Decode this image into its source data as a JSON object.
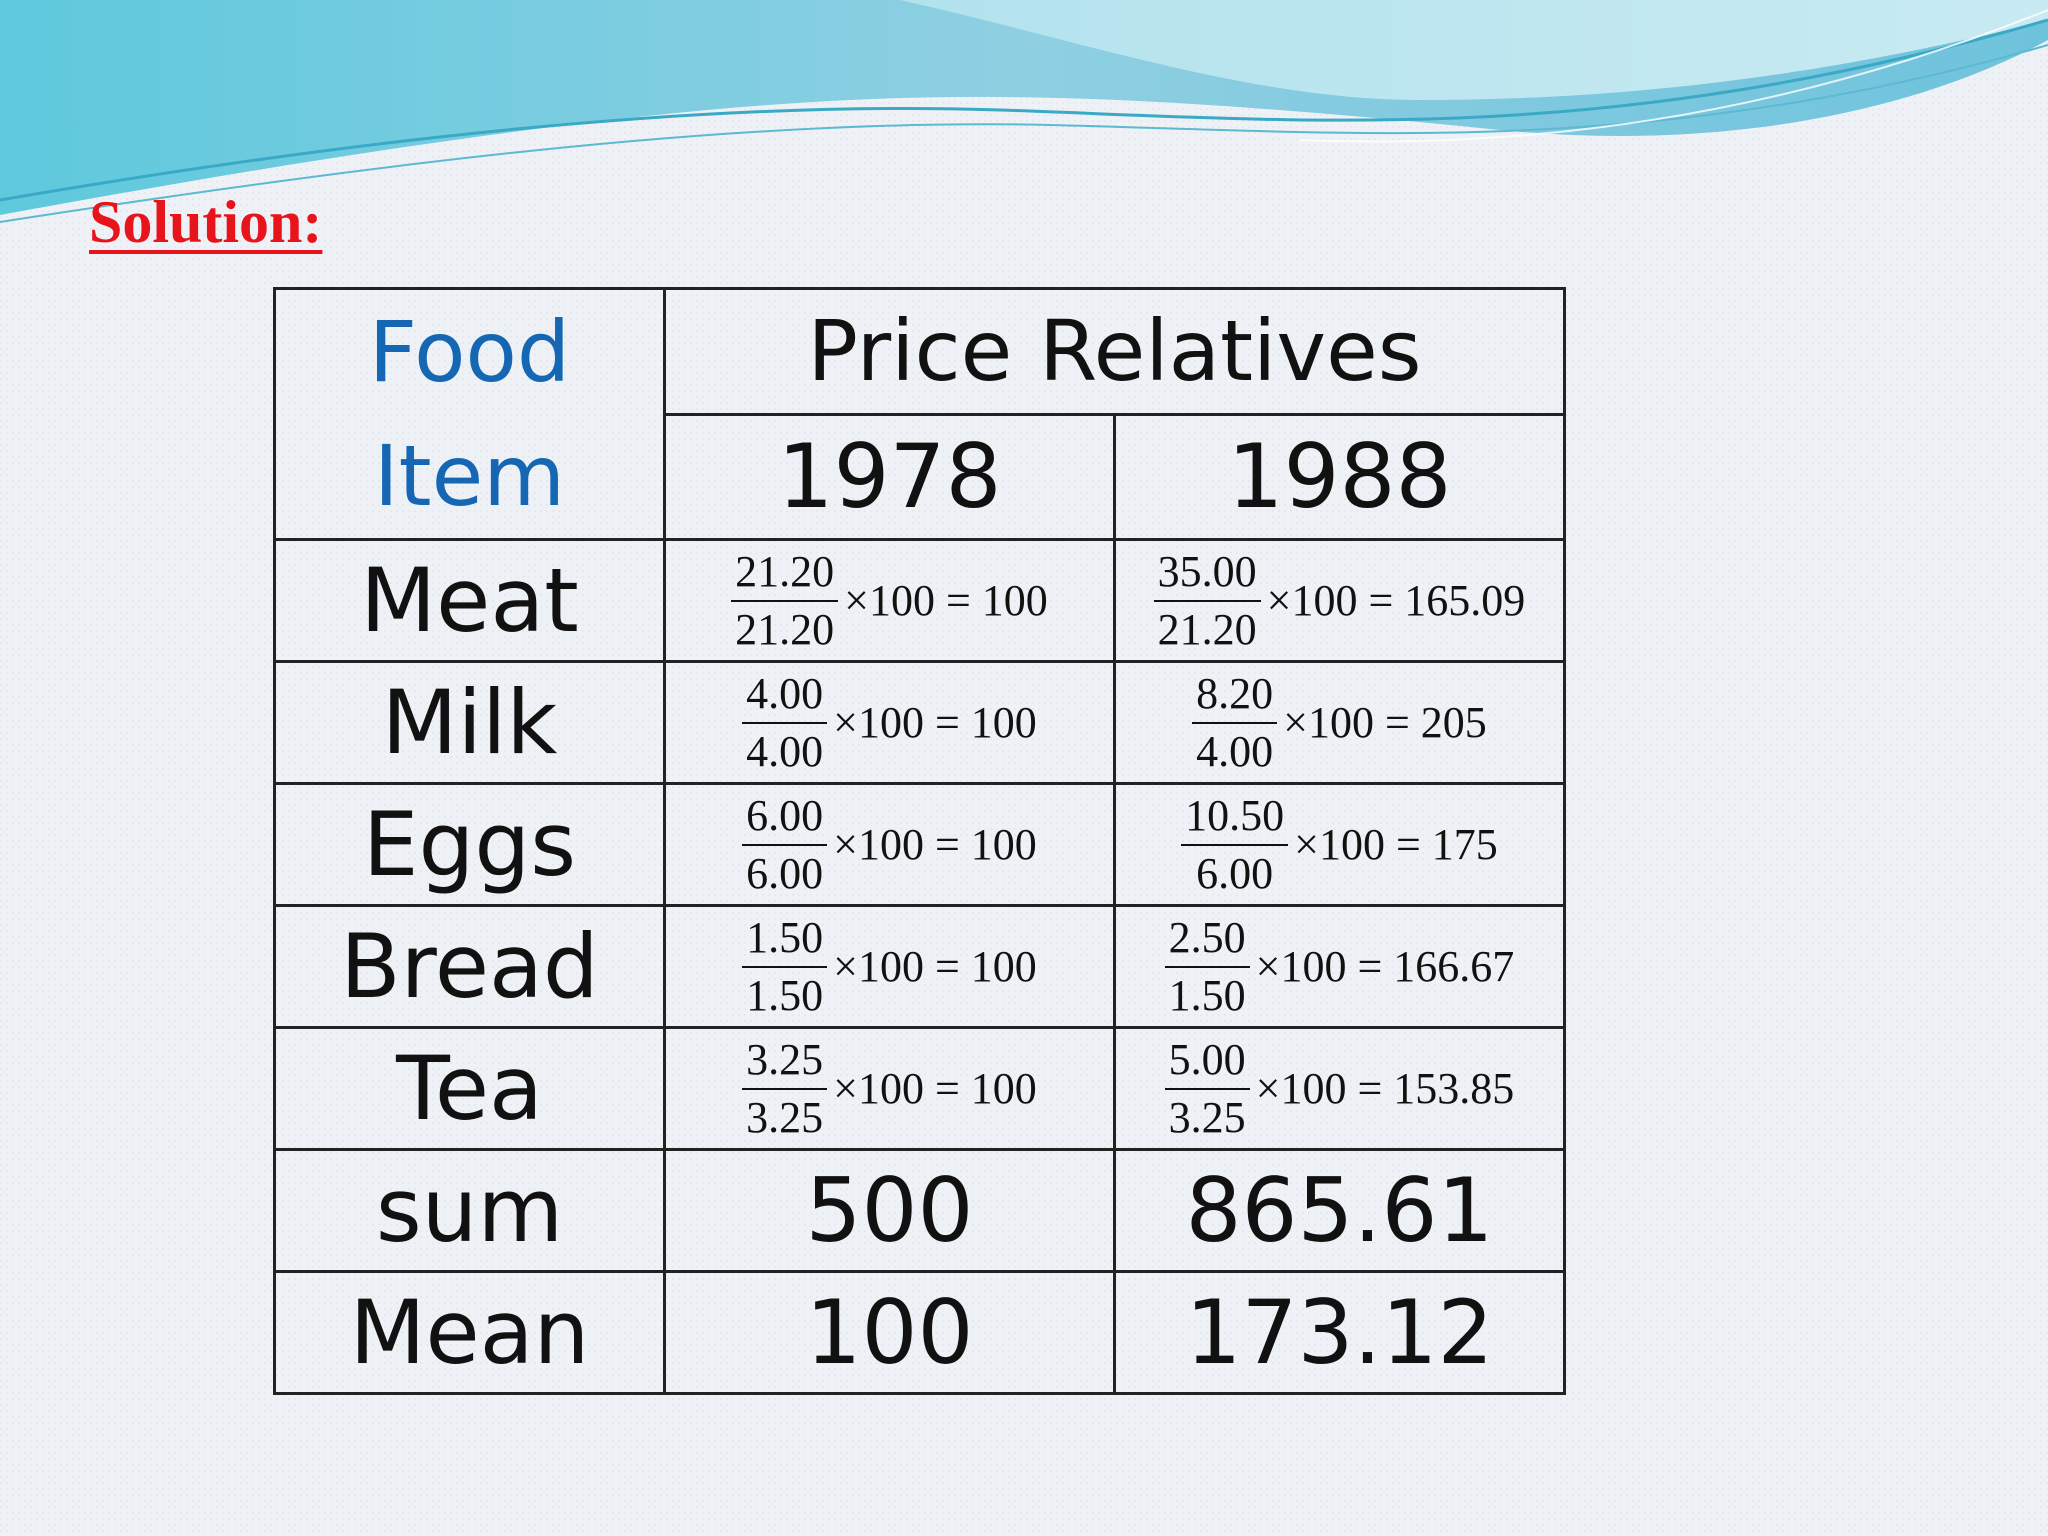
{
  "title": "Solution:",
  "table": {
    "header": {
      "food_item": "Food Item",
      "food_line1": "Food",
      "food_line2": "Item",
      "price_relatives": "Price Relatives",
      "year1": "1978",
      "year2": "1988"
    },
    "rows": [
      {
        "item": "Meat",
        "y1": {
          "num": "21.20",
          "den": "21.20",
          "rest": "×100 = 100"
        },
        "y2": {
          "num": "35.00",
          "den": "21.20",
          "rest": "×100 = 165.09"
        }
      },
      {
        "item": "Milk",
        "y1": {
          "num": "4.00",
          "den": "4.00",
          "rest": "×100 = 100"
        },
        "y2": {
          "num": "8.20",
          "den": "4.00",
          "rest": "×100 = 205"
        }
      },
      {
        "item": "Eggs",
        "y1": {
          "num": "6.00",
          "den": "6.00",
          "rest": "×100 = 100"
        },
        "y2": {
          "num": "10.50",
          "den": "6.00",
          "rest": "×100 = 175"
        }
      },
      {
        "item": "Bread",
        "y1": {
          "num": "1.50",
          "den": "1.50",
          "rest": "×100 = 100"
        },
        "y2": {
          "num": "2.50",
          "den": "1.50",
          "rest": "×100 = 166.67"
        }
      },
      {
        "item": "Tea",
        "y1": {
          "num": "3.25",
          "den": "3.25",
          "rest": "×100 = 100"
        },
        "y2": {
          "num": "5.00",
          "den": "3.25",
          "rest": "×100 = 153.85"
        }
      }
    ],
    "sum": {
      "label": "sum",
      "y1": "500",
      "y2": "865.61"
    },
    "mean": {
      "label": "Mean",
      "y1": "100",
      "y2": "173.12"
    }
  }
}
